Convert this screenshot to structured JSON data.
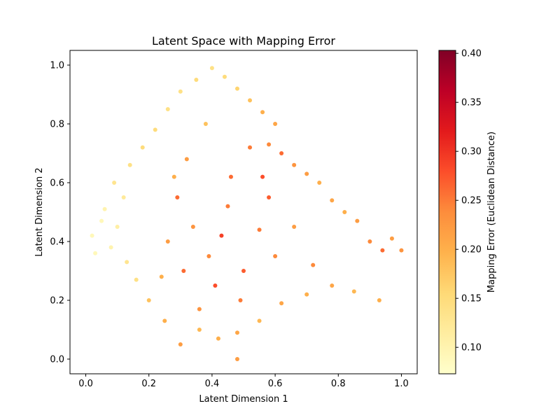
{
  "chart_data": {
    "type": "scatter",
    "title": "Latent Space with Mapping Error",
    "xlabel": "Latent Dimension 1",
    "ylabel": "Latent Dimension 2",
    "xlim": [
      -0.05,
      1.05
    ],
    "ylim": [
      -0.05,
      1.05
    ],
    "xticks": [
      "0.0",
      "0.2",
      "0.4",
      "0.6",
      "0.8",
      "1.0"
    ],
    "yticks": [
      "0.0",
      "0.2",
      "0.4",
      "0.6",
      "0.8",
      "1.0"
    ],
    "grid": false,
    "colorbar": {
      "label": "Mapping Error (Euclidean Distance)",
      "min": 0.073,
      "max": 0.403,
      "ticks": [
        "0.10",
        "0.15",
        "0.20",
        "0.25",
        "0.30",
        "0.35",
        "0.40"
      ],
      "colormap": "YlOrRd",
      "colors": [
        "#ffffcc",
        "#ffeda0",
        "#fed976",
        "#feb24c",
        "#fd8d3c",
        "#fc4e2a",
        "#e31a1c",
        "#bd0026",
        "#800026"
      ]
    },
    "points": [
      [
        0.02,
        0.42,
        0.09
      ],
      [
        0.05,
        0.47,
        0.09
      ],
      [
        0.08,
        0.38,
        0.1
      ],
      [
        0.03,
        0.36,
        0.09
      ],
      [
        0.06,
        0.51,
        0.1
      ],
      [
        0.1,
        0.45,
        0.11
      ],
      [
        0.12,
        0.55,
        0.12
      ],
      [
        0.09,
        0.6,
        0.13
      ],
      [
        0.14,
        0.66,
        0.14
      ],
      [
        0.18,
        0.72,
        0.15
      ],
      [
        0.22,
        0.78,
        0.15
      ],
      [
        0.26,
        0.85,
        0.14
      ],
      [
        0.3,
        0.91,
        0.14
      ],
      [
        0.35,
        0.95,
        0.15
      ],
      [
        0.4,
        0.99,
        0.14
      ],
      [
        0.44,
        0.96,
        0.15
      ],
      [
        0.48,
        0.92,
        0.16
      ],
      [
        0.52,
        0.88,
        0.18
      ],
      [
        0.56,
        0.84,
        0.2
      ],
      [
        0.6,
        0.8,
        0.21
      ],
      [
        0.58,
        0.73,
        0.24
      ],
      [
        0.62,
        0.7,
        0.26
      ],
      [
        0.66,
        0.66,
        0.23
      ],
      [
        0.7,
        0.63,
        0.22
      ],
      [
        0.74,
        0.6,
        0.2
      ],
      [
        0.78,
        0.54,
        0.21
      ],
      [
        0.82,
        0.5,
        0.2
      ],
      [
        0.86,
        0.47,
        0.22
      ],
      [
        0.9,
        0.4,
        0.24
      ],
      [
        0.94,
        0.37,
        0.26
      ],
      [
        0.97,
        0.41,
        0.22
      ],
      [
        1.0,
        0.37,
        0.23
      ],
      [
        0.93,
        0.2,
        0.2
      ],
      [
        0.85,
        0.23,
        0.19
      ],
      [
        0.78,
        0.25,
        0.21
      ],
      [
        0.7,
        0.22,
        0.2
      ],
      [
        0.62,
        0.19,
        0.21
      ],
      [
        0.55,
        0.13,
        0.19
      ],
      [
        0.48,
        0.09,
        0.21
      ],
      [
        0.42,
        0.07,
        0.2
      ],
      [
        0.36,
        0.1,
        0.19
      ],
      [
        0.3,
        0.05,
        0.22
      ],
      [
        0.25,
        0.13,
        0.2
      ],
      [
        0.2,
        0.2,
        0.18
      ],
      [
        0.16,
        0.27,
        0.14
      ],
      [
        0.13,
        0.33,
        0.13
      ],
      [
        0.48,
        0.0,
        0.22
      ],
      [
        0.34,
        0.45,
        0.23
      ],
      [
        0.39,
        0.35,
        0.24
      ],
      [
        0.45,
        0.52,
        0.25
      ],
      [
        0.5,
        0.3,
        0.27
      ],
      [
        0.41,
        0.25,
        0.28
      ],
      [
        0.29,
        0.55,
        0.26
      ],
      [
        0.55,
        0.44,
        0.25
      ],
      [
        0.32,
        0.68,
        0.22
      ],
      [
        0.46,
        0.62,
        0.26
      ],
      [
        0.52,
        0.72,
        0.25
      ],
      [
        0.38,
        0.8,
        0.18
      ],
      [
        0.26,
        0.4,
        0.22
      ],
      [
        0.6,
        0.35,
        0.24
      ],
      [
        0.66,
        0.45,
        0.22
      ],
      [
        0.72,
        0.32,
        0.24
      ],
      [
        0.24,
        0.28,
        0.2
      ],
      [
        0.36,
        0.17,
        0.23
      ],
      [
        0.58,
        0.55,
        0.27
      ],
      [
        0.43,
        0.42,
        0.29
      ],
      [
        0.31,
        0.3,
        0.26
      ],
      [
        0.49,
        0.2,
        0.25
      ],
      [
        0.56,
        0.62,
        0.28
      ],
      [
        0.28,
        0.62,
        0.2
      ]
    ]
  }
}
